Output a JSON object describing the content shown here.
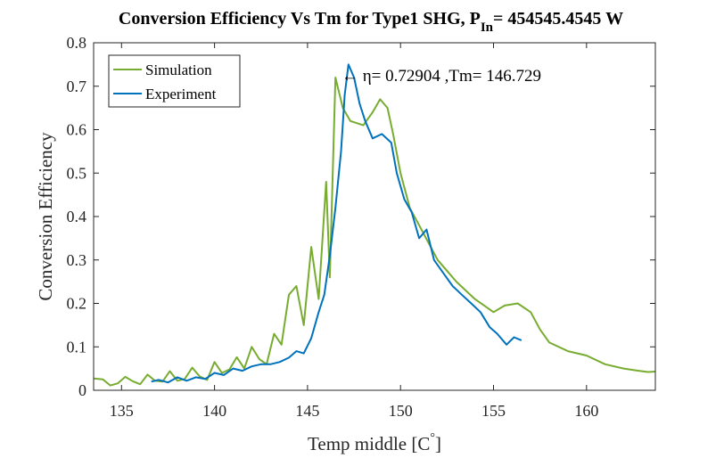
{
  "chart_data": {
    "type": "line",
    "title": "Conversion Efficiency Vs Tm for Type1 SHG, P",
    "title_subscript": "In",
    "title_suffix": "= 454545.4545 W",
    "xlabel": "Temp middle [C",
    "xlabel_superscript": "°",
    "xlabel_suffix": "]",
    "ylabel": "Conversion Efficiency",
    "xlim": [
      133.5,
      163.7
    ],
    "ylim": [
      0,
      0.8
    ],
    "x_ticks": [
      135,
      140,
      145,
      150,
      155,
      160
    ],
    "x_tick_labels": [
      "135",
      "140",
      "145",
      "150",
      "155",
      "160"
    ],
    "y_ticks": [
      0,
      0.1,
      0.2,
      0.3,
      0.4,
      0.5,
      0.6,
      0.7,
      0.8
    ],
    "y_tick_labels": [
      "0",
      "0.1",
      "0.2",
      "0.3",
      "0.4",
      "0.5",
      "0.6",
      "0.7",
      "0.8"
    ],
    "grid": false,
    "legend_position": "top-left",
    "series": [
      {
        "name": "Simulation",
        "color": "#77AC30",
        "x": [
          133.5,
          134.0,
          134.4,
          134.8,
          135.2,
          135.6,
          136.0,
          136.4,
          136.8,
          137.2,
          137.6,
          138.0,
          138.4,
          138.8,
          139.2,
          139.6,
          140.0,
          140.4,
          140.8,
          141.2,
          141.6,
          142.0,
          142.4,
          142.8,
          143.2,
          143.6,
          144.0,
          144.4,
          144.8,
          145.2,
          145.6,
          146.0,
          146.2,
          146.5,
          146.9,
          147.3,
          148.0,
          148.5,
          148.9,
          149.3,
          149.6,
          150.0,
          150.5,
          151.0,
          152.0,
          153.0,
          154.0,
          155.0,
          155.6,
          156.3,
          157.0,
          157.5,
          158.0,
          159.0,
          160.0,
          161.0,
          162.0,
          162.8,
          163.3,
          163.7
        ],
        "y": [
          0.027,
          0.025,
          0.011,
          0.016,
          0.031,
          0.021,
          0.014,
          0.036,
          0.022,
          0.02,
          0.044,
          0.022,
          0.026,
          0.052,
          0.032,
          0.024,
          0.065,
          0.04,
          0.048,
          0.076,
          0.05,
          0.1,
          0.072,
          0.06,
          0.13,
          0.105,
          0.22,
          0.24,
          0.15,
          0.33,
          0.21,
          0.48,
          0.26,
          0.72,
          0.65,
          0.62,
          0.61,
          0.64,
          0.67,
          0.65,
          0.59,
          0.5,
          0.42,
          0.38,
          0.3,
          0.25,
          0.21,
          0.18,
          0.195,
          0.2,
          0.18,
          0.14,
          0.11,
          0.09,
          0.08,
          0.06,
          0.05,
          0.045,
          0.042,
          0.043
        ]
      },
      {
        "name": "Experiment",
        "color": "#0072BD",
        "x": [
          136.6,
          137.0,
          137.5,
          138.0,
          138.5,
          139.0,
          139.5,
          140.0,
          140.5,
          141.0,
          141.5,
          142.0,
          142.5,
          143.0,
          143.5,
          144.0,
          144.4,
          144.8,
          145.2,
          145.6,
          145.9,
          146.2,
          146.5,
          146.8,
          147.0,
          147.2,
          147.5,
          147.8,
          148.1,
          148.5,
          149.0,
          149.5,
          149.8,
          150.2,
          150.6,
          151.0,
          151.4,
          151.8,
          152.3,
          152.8,
          153.3,
          153.8,
          154.3,
          154.8,
          155.2,
          155.7,
          156.1,
          156.5
        ],
        "y": [
          0.02,
          0.024,
          0.018,
          0.03,
          0.022,
          0.03,
          0.026,
          0.04,
          0.035,
          0.05,
          0.045,
          0.055,
          0.06,
          0.06,
          0.065,
          0.075,
          0.09,
          0.085,
          0.12,
          0.18,
          0.22,
          0.31,
          0.42,
          0.55,
          0.68,
          0.75,
          0.72,
          0.66,
          0.62,
          0.58,
          0.59,
          0.57,
          0.5,
          0.44,
          0.41,
          0.35,
          0.37,
          0.3,
          0.27,
          0.24,
          0.22,
          0.2,
          0.18,
          0.145,
          0.13,
          0.105,
          0.122,
          0.115
        ]
      }
    ],
    "annotation": {
      "text": "← η= 0.72904 ,Tm= 146.729",
      "x": 146.729,
      "y": 0.72904
    }
  }
}
